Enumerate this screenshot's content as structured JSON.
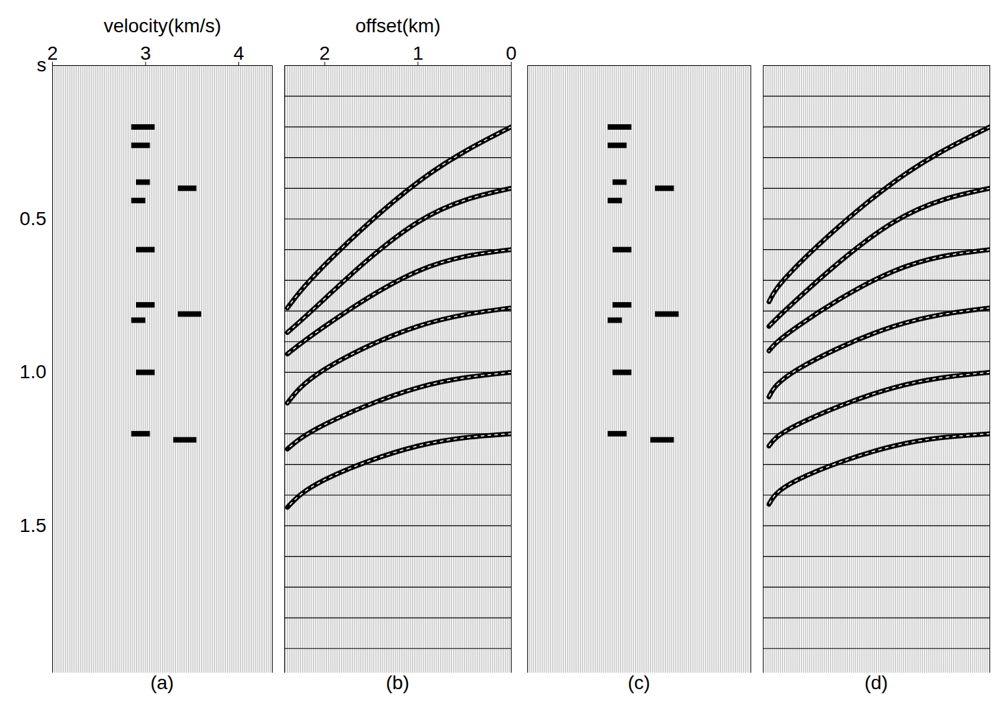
{
  "chart_data": [
    {
      "type": "spectrum",
      "title": "(a)",
      "xlabel": "velocity(km/s)",
      "xlim": [
        2,
        4.36
      ],
      "xticks": [
        2,
        3,
        4
      ],
      "ylim": [
        0,
        1.98
      ],
      "yticks": [
        {
          "value": 0,
          "label": "s"
        },
        0.5,
        {
          "value": 1,
          "label": "1.0"
        },
        1.5
      ],
      "tick_labels": true,
      "events": [
        {
          "t": 0.2,
          "v0": 2.85,
          "v1": 3.1
        },
        {
          "t": 0.26,
          "v0": 2.85,
          "v1": 3.05
        },
        {
          "t": 0.38,
          "v0": 2.9,
          "v1": 3.05
        },
        {
          "t": 0.4,
          "v0": 3.35,
          "v1": 3.55
        },
        {
          "t": 0.44,
          "v0": 2.85,
          "v1": 3.0
        },
        {
          "t": 0.6,
          "v0": 2.9,
          "v1": 3.1
        },
        {
          "t": 0.78,
          "v0": 2.9,
          "v1": 3.1
        },
        {
          "t": 0.81,
          "v0": 3.35,
          "v1": 3.6
        },
        {
          "t": 0.83,
          "v0": 2.85,
          "v1": 3.0
        },
        {
          "t": 1.0,
          "v0": 2.9,
          "v1": 3.1
        },
        {
          "t": 1.2,
          "v0": 2.85,
          "v1": 3.05
        },
        {
          "t": 1.22,
          "v0": 3.3,
          "v1": 3.55
        }
      ]
    },
    {
      "type": "gather",
      "title": "(b)",
      "xlabel": "offset(km)",
      "xlim": [
        2.43,
        0
      ],
      "xticks": [
        2,
        1,
        0
      ],
      "ylim": [
        0,
        1.98
      ],
      "yticks": [
        0.1,
        0.2,
        0.3,
        0.4,
        0.5,
        0.6,
        0.7,
        0.8,
        0.9,
        1.0,
        1.1,
        1.2,
        1.3,
        1.4,
        1.5,
        1.6,
        1.7,
        1.8,
        1.9
      ],
      "grid": true,
      "tick_labels": "x",
      "events": [
        [
          [
            0,
            0.2
          ],
          [
            1,
            0.38
          ],
          [
            2,
            0.65
          ],
          [
            2.4,
            0.79
          ]
        ],
        [
          [
            0,
            0.4
          ],
          [
            1,
            0.51
          ],
          [
            2,
            0.76
          ],
          [
            2.4,
            0.87
          ]
        ],
        [
          [
            0,
            0.6
          ],
          [
            1,
            0.67
          ],
          [
            2,
            0.85
          ],
          [
            2.4,
            0.94
          ]
        ],
        [
          [
            0,
            0.79
          ],
          [
            1,
            0.85
          ],
          [
            2,
            0.99
          ],
          [
            2.4,
            1.1
          ]
        ],
        [
          [
            0,
            1.0
          ],
          [
            1,
            1.05
          ],
          [
            2,
            1.17
          ],
          [
            2.4,
            1.25
          ]
        ],
        [
          [
            0,
            1.2
          ],
          [
            1,
            1.24
          ],
          [
            2,
            1.35
          ],
          [
            2.4,
            1.44
          ]
        ]
      ]
    },
    {
      "type": "spectrum",
      "title": "(c)",
      "xlim": [
        2,
        4.36
      ],
      "ylim": [
        0,
        1.98
      ],
      "tick_labels": false,
      "events": [
        {
          "t": 0.2,
          "v0": 2.85,
          "v1": 3.1
        },
        {
          "t": 0.26,
          "v0": 2.85,
          "v1": 3.05
        },
        {
          "t": 0.38,
          "v0": 2.9,
          "v1": 3.05
        },
        {
          "t": 0.4,
          "v0": 3.35,
          "v1": 3.55
        },
        {
          "t": 0.44,
          "v0": 2.85,
          "v1": 3.0
        },
        {
          "t": 0.6,
          "v0": 2.9,
          "v1": 3.1
        },
        {
          "t": 0.78,
          "v0": 2.9,
          "v1": 3.1
        },
        {
          "t": 0.81,
          "v0": 3.35,
          "v1": 3.6
        },
        {
          "t": 0.83,
          "v0": 2.85,
          "v1": 3.0
        },
        {
          "t": 1.0,
          "v0": 2.9,
          "v1": 3.1
        },
        {
          "t": 1.2,
          "v0": 2.85,
          "v1": 3.05
        },
        {
          "t": 1.22,
          "v0": 3.3,
          "v1": 3.55
        }
      ]
    },
    {
      "type": "gather",
      "title": "(d)",
      "xlim": [
        2.36,
        0
      ],
      "ylim": [
        0,
        1.98
      ],
      "yticks": [
        0.1,
        0.2,
        0.3,
        0.4,
        0.5,
        0.6,
        0.7,
        0.8,
        0.9,
        1.0,
        1.1,
        1.2,
        1.3,
        1.4,
        1.5,
        1.6,
        1.7,
        1.8,
        1.9
      ],
      "grid": true,
      "tick_labels": false,
      "events": [
        [
          [
            0,
            0.2
          ],
          [
            1,
            0.38
          ],
          [
            2,
            0.65
          ],
          [
            2.3,
            0.77
          ]
        ],
        [
          [
            0,
            0.4
          ],
          [
            1,
            0.51
          ],
          [
            2,
            0.76
          ],
          [
            2.3,
            0.85
          ]
        ],
        [
          [
            0,
            0.6
          ],
          [
            1,
            0.67
          ],
          [
            2,
            0.85
          ],
          [
            2.3,
            0.93
          ]
        ],
        [
          [
            0,
            0.79
          ],
          [
            1,
            0.85
          ],
          [
            2,
            0.99
          ],
          [
            2.3,
            1.08
          ]
        ],
        [
          [
            0,
            1.0
          ],
          [
            1,
            1.05
          ],
          [
            2,
            1.17
          ],
          [
            2.3,
            1.24
          ]
        ],
        [
          [
            0,
            1.2
          ],
          [
            1,
            1.24
          ],
          [
            2,
            1.35
          ],
          [
            2.3,
            1.43
          ]
        ]
      ]
    }
  ]
}
